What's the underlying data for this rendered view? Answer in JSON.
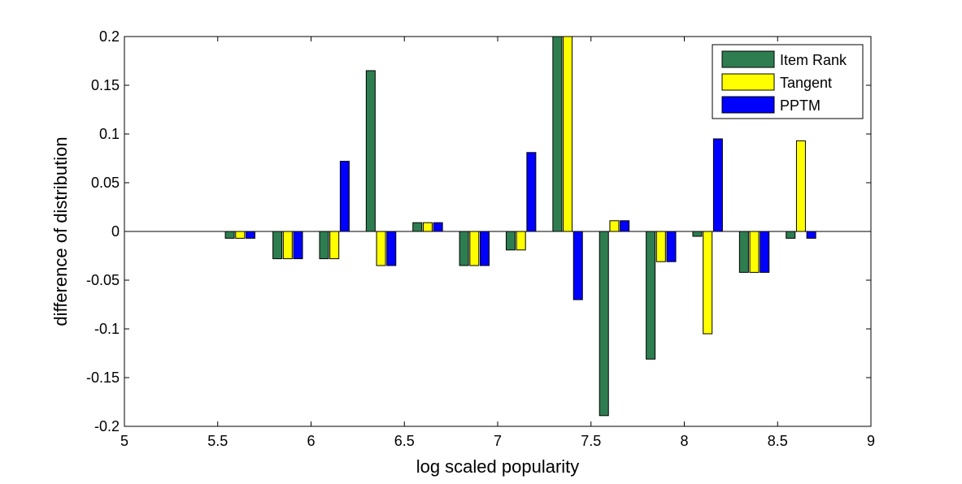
{
  "chart_data": {
    "type": "bar",
    "xlabel": "log scaled popularity",
    "ylabel": "difference of distribution",
    "xlim": [
      5,
      9
    ],
    "ylim": [
      -0.2,
      0.2
    ],
    "x_ticks": [
      "5",
      "5.5",
      "6",
      "6.5",
      "7",
      "7.5",
      "8",
      "8.5",
      "9"
    ],
    "y_ticks": [
      "-0.2",
      "-0.15",
      "-0.1",
      "-0.05",
      "0",
      "0.05",
      "0.1",
      "0.15",
      "0.2"
    ],
    "x": [
      5.62,
      5.875,
      6.125,
      6.375,
      6.625,
      6.875,
      7.125,
      7.375,
      7.625,
      7.875,
      8.125,
      8.375,
      8.625
    ],
    "legend_position": "top-right",
    "grid": false,
    "series": [
      {
        "name": "Item Rank",
        "color": "#2e7d50",
        "values": [
          -0.007,
          -0.028,
          -0.028,
          0.165,
          0.009,
          -0.035,
          -0.019,
          0.2,
          -0.189,
          -0.131,
          -0.005,
          -0.042,
          -0.007
        ]
      },
      {
        "name": "Tangent",
        "color": "#ffff00",
        "values": [
          -0.007,
          -0.028,
          -0.028,
          -0.035,
          0.009,
          -0.035,
          -0.019,
          0.2,
          0.011,
          -0.031,
          -0.105,
          -0.042,
          0.093
        ]
      },
      {
        "name": "PPTM",
        "color": "#0000ff",
        "values": [
          -0.007,
          -0.028,
          0.072,
          -0.035,
          0.009,
          -0.035,
          0.081,
          -0.07,
          0.011,
          -0.031,
          0.095,
          -0.042,
          -0.007
        ]
      }
    ]
  }
}
